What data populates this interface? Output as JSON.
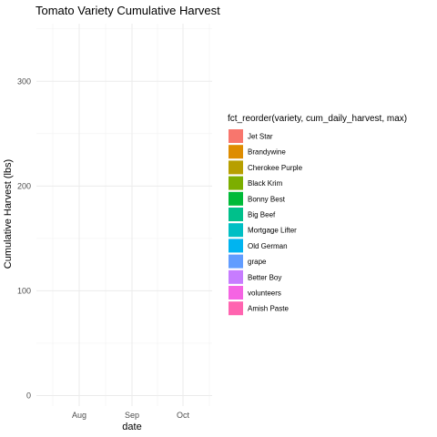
{
  "chart_data": {
    "type": "area",
    "title": "Tomato Variety Cumulative Harvest",
    "xlabel": "date",
    "ylabel": "Cumulative Harvest (lbs)",
    "x_ticks": [
      "Aug",
      "Sep",
      "Oct"
    ],
    "y_ticks": [
      0,
      100,
      200,
      300
    ],
    "ylim": [
      -10,
      355
    ],
    "grid": true,
    "legend_title": "fct_reorder(variety, cum_daily_harvest, max)",
    "legend_position": "right",
    "series": [
      {
        "name": "Jet Star",
        "color": "#F8766D"
      },
      {
        "name": "Brandywine",
        "color": "#DE8C00"
      },
      {
        "name": "Cherokee Purple",
        "color": "#B79F00"
      },
      {
        "name": "Black Krim",
        "color": "#7CAE00"
      },
      {
        "name": "Bonny Best",
        "color": "#00BA38"
      },
      {
        "name": "Big Beef",
        "color": "#00C08B"
      },
      {
        "name": "Mortgage Lifter",
        "color": "#00BFC4"
      },
      {
        "name": "Old German",
        "color": "#00B4F0"
      },
      {
        "name": "grape",
        "color": "#619CFF"
      },
      {
        "name": "Better Boy",
        "color": "#C77CFF"
      },
      {
        "name": "volunteers",
        "color": "#F564E3"
      },
      {
        "name": "Amish Paste",
        "color": "#FF64B0"
      }
    ]
  }
}
